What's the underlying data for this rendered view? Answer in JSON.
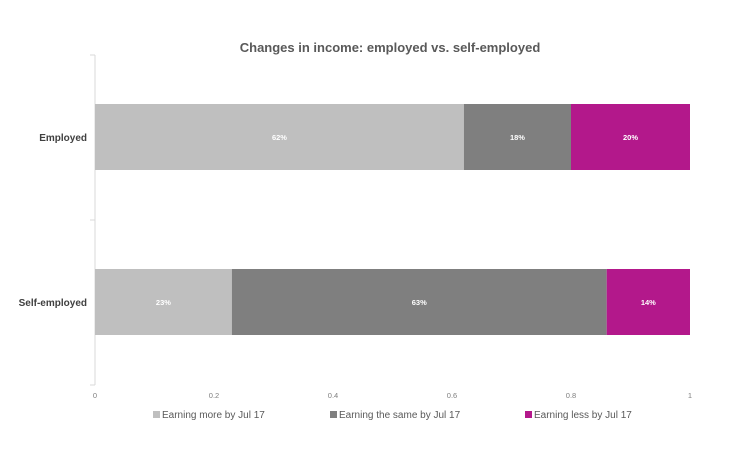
{
  "chart_data": {
    "type": "bar",
    "orientation": "horizontal",
    "stacked": true,
    "title": "Changes in income: employed vs. self-employed",
    "categories": [
      "Employed",
      "Self-employed"
    ],
    "series": [
      {
        "name": "Earning more by Jul 17",
        "values": [
          0.62,
          0.23
        ],
        "labels": [
          "62%",
          "23%"
        ],
        "color": "#bfbfbf"
      },
      {
        "name": "Earning the same by Jul 17",
        "values": [
          0.18,
          0.63
        ],
        "labels": [
          "18%",
          "63%"
        ],
        "color": "#7f7f7f"
      },
      {
        "name": "Earning less by Jul 17",
        "values": [
          0.2,
          0.14
        ],
        "labels": [
          "20%",
          "14%"
        ],
        "color": "#b3188b"
      }
    ],
    "xlim": [
      0,
      1
    ],
    "xticks": [
      0,
      0.2,
      0.4,
      0.6,
      0.8,
      1
    ],
    "xtick_labels": [
      "0",
      "0.2",
      "0.4",
      "0.6",
      "0.8",
      "1"
    ],
    "grid": false,
    "legend_position": "bottom"
  }
}
